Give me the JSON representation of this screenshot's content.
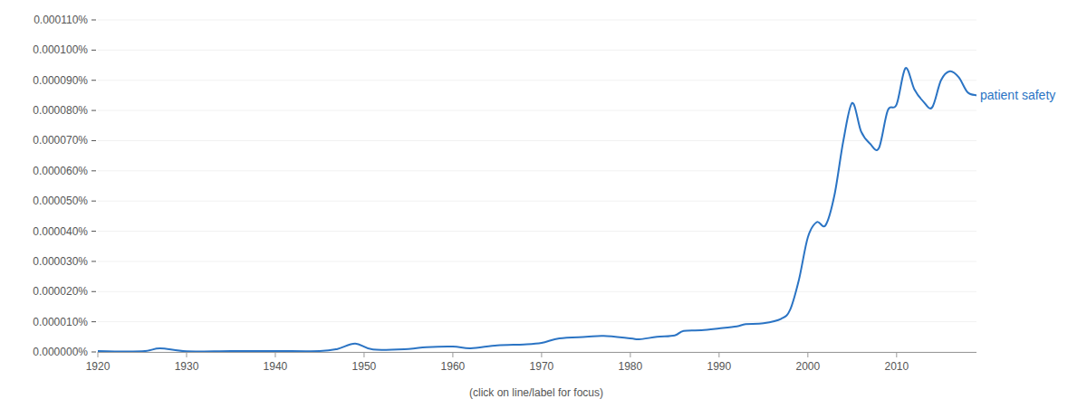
{
  "chart_data": {
    "type": "line",
    "caption": "(click on line/label for focus)",
    "x": [
      1920,
      1925,
      1927,
      1930,
      1935,
      1940,
      1945,
      1947,
      1949,
      1951,
      1955,
      1957,
      1960,
      1962,
      1965,
      1968,
      1970,
      1972,
      1975,
      1977,
      1980,
      1981,
      1983,
      1985,
      1986,
      1988,
      1990,
      1992,
      1993,
      1995,
      1997,
      1998,
      1999,
      2000,
      2001,
      2002,
      2003,
      2004,
      2005,
      2006,
      2007,
      2008,
      2009,
      2010,
      2011,
      2012,
      2013,
      2014,
      2015,
      2016,
      2017,
      2018,
      2019
    ],
    "series": [
      {
        "name": "patient safety",
        "color": "#2b74c4",
        "values": [
          3e-07,
          2e-07,
          1.2e-06,
          2e-07,
          3e-07,
          3e-07,
          3e-07,
          1e-06,
          2.8e-06,
          8e-07,
          1e-06,
          1.6e-06,
          1.8e-06,
          1.2e-06,
          2.2e-06,
          2.5e-06,
          3e-06,
          4.5e-06,
          5e-06,
          5.3e-06,
          4.5e-06,
          4.2e-06,
          5e-06,
          5.5e-06,
          7e-06,
          7.2e-06,
          7.8e-06,
          8.5e-06,
          9.2e-06,
          9.5e-06,
          1.1e-05,
          1.4e-05,
          2.4e-05,
          3.8e-05,
          4.3e-05,
          4.2e-05,
          5.2e-05,
          7e-05,
          8.25e-05,
          7.3e-05,
          6.9e-05,
          6.75e-05,
          8e-05,
          8.2e-05,
          9.4e-05,
          8.7e-05,
          8.3e-05,
          8.1e-05,
          9e-05,
          9.3e-05,
          9.1e-05,
          8.6e-05,
          8.5e-05
        ]
      }
    ],
    "xlim": [
      1920,
      2019
    ],
    "xticks": [
      1920,
      1930,
      1940,
      1950,
      1960,
      1970,
      1980,
      1990,
      2000,
      2010
    ],
    "ylim": [
      0,
      0.00011
    ],
    "yticks": [
      {
        "value": 0,
        "label": "0.000000%"
      },
      {
        "value": 1e-05,
        "label": "0.000010%"
      },
      {
        "value": 2e-05,
        "label": "0.000020%"
      },
      {
        "value": 3e-05,
        "label": "0.000030%"
      },
      {
        "value": 4e-05,
        "label": "0.000040%"
      },
      {
        "value": 5e-05,
        "label": "0.000050%"
      },
      {
        "value": 6e-05,
        "label": "0.000060%"
      },
      {
        "value": 7e-05,
        "label": "0.000070%"
      },
      {
        "value": 8e-05,
        "label": "0.000080%"
      },
      {
        "value": 9e-05,
        "label": "0.000090%"
      },
      {
        "value": 0.0001,
        "label": "0.000100%"
      },
      {
        "value": 0.00011,
        "label": "0.000110%"
      }
    ],
    "grid": true
  }
}
